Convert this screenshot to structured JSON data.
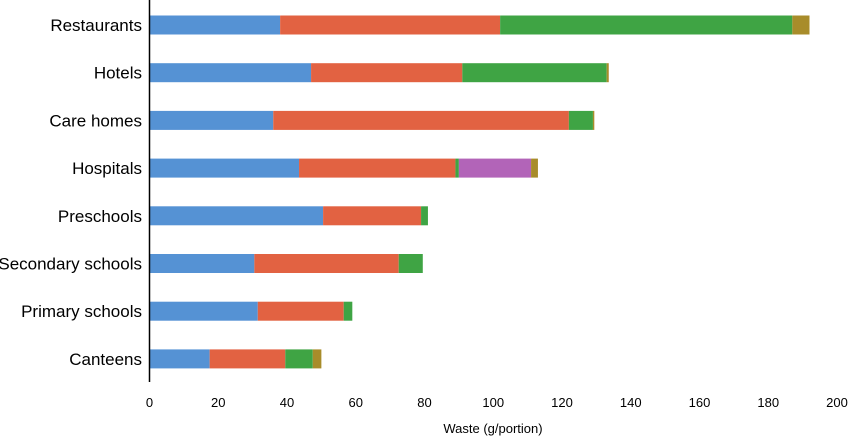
{
  "chart_data": {
    "type": "bar",
    "orientation": "horizontal",
    "stacked": true,
    "categories": [
      "Restaurants",
      "Hotels",
      "Care homes",
      "Hospitals",
      "Preschools",
      "Secondary schools",
      "Primary schools",
      "Canteens"
    ],
    "series": [
      {
        "color": "#5592d4",
        "values": [
          38,
          47,
          36,
          43.5,
          50.5,
          30.5,
          31.5,
          17.5
        ]
      },
      {
        "color": "#e26242",
        "values": [
          64,
          44,
          86,
          45.5,
          28.5,
          42,
          25,
          22
        ]
      },
      {
        "color": "#3fa444",
        "values": [
          85,
          42,
          7,
          1,
          2,
          7,
          2.5,
          8
        ]
      },
      {
        "color": "#b264b8",
        "values": [
          0,
          0,
          0,
          21,
          0,
          0,
          0,
          0
        ]
      },
      {
        "color": "#a88c2a",
        "values": [
          5,
          0.6,
          0.4,
          2,
          0,
          0,
          0,
          2.5
        ]
      }
    ],
    "xlabel": "Waste (g/portion)",
    "ylabel": "",
    "xlim": [
      0,
      200
    ],
    "xticks": [
      "0",
      "20",
      "40",
      "60",
      "80",
      "100",
      "120",
      "140",
      "160",
      "180",
      "200"
    ],
    "grid": false,
    "legend": "none"
  }
}
